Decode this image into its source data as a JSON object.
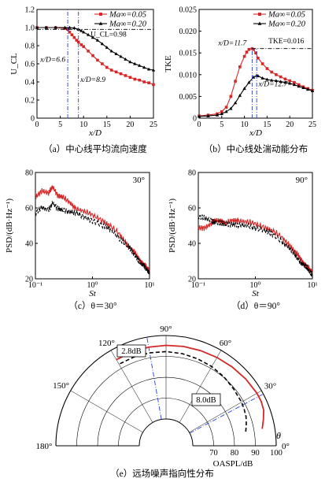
{
  "chart_data": [
    {
      "panel": "a",
      "type": "line",
      "caption": "（a）中心线平均流向速度",
      "xlabel": "x/D",
      "ylabel": "U_CL",
      "xlim": [
        0,
        25
      ],
      "ylim": [
        0,
        1.2
      ],
      "xticks": [
        "0",
        "5",
        "10",
        "15",
        "20",
        "25"
      ],
      "yticks": [
        "0",
        "0.2",
        "0.4",
        "0.6",
        "0.8",
        "1.0",
        "1.2"
      ],
      "legend_position": "top-right",
      "series": [
        {
          "name": "Ma∞=0.05",
          "color": "#d62728",
          "marker": "square",
          "x": [
            0,
            2,
            4,
            6,
            6.6,
            7,
            7.5,
            8,
            8.5,
            8.9,
            9.5,
            10,
            11,
            12,
            13,
            14,
            15,
            16,
            17,
            18,
            19,
            20,
            21,
            22,
            23,
            24,
            25
          ],
          "y": [
            1.0,
            1.0,
            1.0,
            0.99,
            0.98,
            0.95,
            0.92,
            0.89,
            0.86,
            0.84,
            0.81,
            0.79,
            0.74,
            0.69,
            0.64,
            0.6,
            0.56,
            0.53,
            0.51,
            0.49,
            0.47,
            0.45,
            0.43,
            0.42,
            0.4,
            0.39,
            0.37
          ]
        },
        {
          "name": "Ma∞=0.20",
          "color": "#000000",
          "marker": "triangle",
          "x": [
            0,
            2,
            4,
            6,
            7,
            8,
            8.9,
            9.5,
            10,
            11,
            12,
            13,
            14,
            15,
            16,
            17,
            18,
            19,
            20,
            21,
            22,
            23,
            24,
            25
          ],
          "y": [
            1.0,
            1.0,
            1.0,
            1.0,
            1.0,
            0.995,
            0.98,
            0.965,
            0.95,
            0.92,
            0.89,
            0.86,
            0.82,
            0.78,
            0.74,
            0.71,
            0.68,
            0.65,
            0.62,
            0.6,
            0.58,
            0.56,
            0.54,
            0.53
          ]
        }
      ],
      "annotations": [
        {
          "text": "x/D=6.6"
        },
        {
          "text": "x/D=8.9"
        },
        {
          "text": "U_CL=0.98"
        }
      ]
    },
    {
      "panel": "b",
      "type": "line",
      "caption": "（b）中心线处湍动能分布",
      "xlabel": "x/D",
      "ylabel": "TKE",
      "xlim": [
        0,
        25
      ],
      "ylim": [
        0,
        0.025
      ],
      "xticks": [
        "0",
        "5",
        "10",
        "15",
        "20",
        "25"
      ],
      "yticks": [
        "0",
        "0.005",
        "0.010",
        "0.015",
        "0.020",
        "0.025"
      ],
      "legend_position": "top-right",
      "series": [
        {
          "name": "Ma∞=0.05",
          "color": "#d62728",
          "marker": "square",
          "x": [
            0,
            2,
            4,
            5,
            6,
            7,
            8,
            9,
            10,
            10.5,
            11,
            11.7,
            12,
            12.5,
            13,
            14,
            15,
            16,
            17,
            18,
            19,
            20,
            21,
            22,
            23,
            24,
            25
          ],
          "y": [
            0.0005,
            0.0007,
            0.001,
            0.0015,
            0.0025,
            0.005,
            0.0085,
            0.0118,
            0.0142,
            0.0152,
            0.0158,
            0.016,
            0.0158,
            0.015,
            0.0138,
            0.0125,
            0.0114,
            0.0106,
            0.01,
            0.0095,
            0.009,
            0.0086,
            0.0082,
            0.0077,
            0.0072,
            0.0068,
            0.0064
          ]
        },
        {
          "name": "Ma∞=0.20",
          "color": "#000000",
          "marker": "triangle",
          "x": [
            0,
            2,
            4,
            5,
            6,
            7,
            8,
            9,
            10,
            11,
            12,
            12.7,
            13,
            14,
            15,
            16,
            17,
            18,
            19,
            20,
            21,
            22,
            23,
            24,
            25
          ],
          "y": [
            0.0004,
            0.0005,
            0.0007,
            0.001,
            0.0015,
            0.0022,
            0.0035,
            0.0052,
            0.0068,
            0.0082,
            0.0094,
            0.0098,
            0.0097,
            0.0092,
            0.0089,
            0.0087,
            0.0086,
            0.0084,
            0.0082,
            0.008,
            0.0077,
            0.0073,
            0.007,
            0.0066,
            0.0063
          ]
        }
      ],
      "annotations": [
        {
          "text": "x/D=11.7"
        },
        {
          "text": "x/D=12.7"
        },
        {
          "text": "TKE=0.016"
        }
      ]
    },
    {
      "panel": "c",
      "type": "line",
      "caption": "（c）θ＝30°",
      "xlabel": "St",
      "ylabel": "PSD/(dB·Hz⁻¹)",
      "xscale": "log",
      "xlim": [
        0.1,
        10
      ],
      "ylim": [
        20,
        80
      ],
      "xticks": [
        "10⁻¹",
        "10⁰",
        "10¹"
      ],
      "yticks": [
        "20",
        "40",
        "60",
        "80"
      ],
      "corner_label": "30°",
      "series": [
        {
          "name": "Ma∞=0.05",
          "color": "#d62728",
          "x": [
            0.1,
            0.13,
            0.17,
            0.2,
            0.25,
            0.3,
            0.4,
            0.5,
            0.7,
            1,
            1.5,
            2,
            3,
            4,
            5,
            6,
            7,
            8,
            9,
            10
          ],
          "y": [
            66,
            70,
            68,
            72,
            67,
            66,
            63,
            60,
            58,
            56,
            53,
            50,
            45,
            40,
            36,
            33,
            30,
            28,
            26,
            25
          ]
        },
        {
          "name": "Ma∞=0.20",
          "color": "#000000",
          "dash": "dashed",
          "x": [
            0.1,
            0.13,
            0.17,
            0.2,
            0.25,
            0.3,
            0.4,
            0.5,
            0.7,
            1,
            1.5,
            2,
            3,
            4,
            5,
            6,
            7,
            8,
            9,
            10
          ],
          "y": [
            57,
            60,
            59,
            63,
            59,
            59,
            58,
            57,
            55,
            53,
            50,
            48,
            43,
            39,
            35,
            32,
            29,
            27,
            25,
            24
          ]
        }
      ]
    },
    {
      "panel": "d",
      "type": "line",
      "caption": "（d）θ＝90°",
      "xlabel": "St",
      "ylabel": "PSD/(dB·Hz⁻¹)",
      "xscale": "log",
      "xlim": [
        0.1,
        10
      ],
      "ylim": [
        20,
        80
      ],
      "xticks": [
        "10⁻¹",
        "10⁰",
        "10¹"
      ],
      "yticks": [
        "20",
        "40",
        "60",
        "80"
      ],
      "corner_label": "90°",
      "series": [
        {
          "name": "Ma∞=0.05",
          "color": "#d62728",
          "x": [
            0.1,
            0.13,
            0.17,
            0.2,
            0.25,
            0.3,
            0.4,
            0.5,
            0.7,
            1,
            1.5,
            2,
            3,
            4,
            5,
            6,
            7,
            8,
            9,
            10
          ],
          "y": [
            49,
            49,
            51,
            53,
            53,
            51,
            53,
            53,
            52,
            51,
            49,
            47,
            43,
            39,
            35,
            32,
            29,
            27,
            25,
            24
          ]
        },
        {
          "name": "Ma∞=0.20",
          "color": "#000000",
          "dash": "dashed",
          "x": [
            0.1,
            0.13,
            0.17,
            0.2,
            0.25,
            0.3,
            0.4,
            0.5,
            0.7,
            1,
            1.5,
            2,
            3,
            4,
            5,
            6,
            7,
            8,
            9,
            10
          ],
          "y": [
            55,
            54,
            53,
            52,
            51,
            51,
            51,
            50,
            50,
            49,
            47,
            45,
            41,
            37,
            33,
            30,
            28,
            26,
            24,
            23
          ]
        }
      ]
    },
    {
      "panel": "e",
      "type": "polar",
      "caption": "（e）远场噪声指向性分布",
      "radial_label": "OASPL/dB",
      "angle_label": "θ",
      "r_range": [
        60,
        100
      ],
      "radial_ticks": [
        "70",
        "80",
        "90",
        "100"
      ],
      "angle_ticks": [
        "0°",
        "30°",
        "60°",
        "90°",
        "120°",
        "150°",
        "180°"
      ],
      "series": [
        {
          "name": "Ma∞=0.05",
          "color": "#d62728",
          "theta": [
            10,
            15,
            20,
            25,
            30,
            40,
            50,
            60,
            70,
            80,
            90,
            100,
            110,
            120
          ],
          "r": [
            94,
            95.5,
            97,
            97.5,
            97.5,
            97,
            96.5,
            96,
            95.7,
            95.5,
            95.3,
            95.2,
            95,
            94.8
          ]
        },
        {
          "name": "Ma∞=0.20",
          "color": "#000000",
          "dash": "dashed",
          "theta": [
            10,
            15,
            20,
            25,
            30,
            40,
            50,
            60,
            70,
            80,
            90,
            100,
            110,
            120
          ],
          "r": [
            86,
            87,
            88,
            88.5,
            89,
            89.5,
            90.3,
            91,
            91.5,
            92,
            92.3,
            92.4,
            92.4,
            92.3
          ]
        }
      ],
      "annotations": [
        {
          "text": "2.8dB"
        },
        {
          "text": "8.0dB"
        }
      ]
    }
  ]
}
